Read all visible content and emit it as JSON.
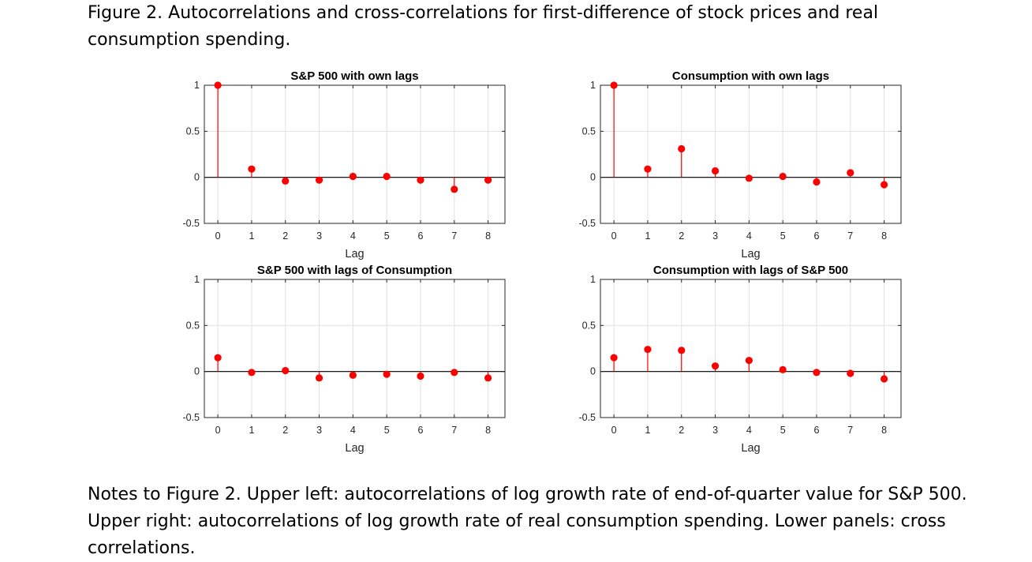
{
  "figure": {
    "title": "Figure 2. Autocorrelations and cross-correlations for first-difference of stock prices and real consumption spending.",
    "notes": "Notes to Figure 2. Upper left: autocorrelations of log growth rate of end-of-quarter value for S&P 500. Upper right: autocorrelations of log growth rate of real consumption spending.  Lower panels: cross correlations."
  },
  "colors": {
    "stem": "#ff0000",
    "axis": "#262626",
    "grid": "#e0e0e0",
    "zero_line": "#000000"
  },
  "chart_data": [
    {
      "type": "stem",
      "title": "S&P 500 with own lags",
      "xlabel": "Lag",
      "ylabel": "",
      "x": [
        0,
        1,
        2,
        3,
        4,
        5,
        6,
        7,
        8
      ],
      "values": [
        1.0,
        0.09,
        -0.04,
        -0.03,
        0.01,
        0.01,
        -0.03,
        -0.13,
        -0.03
      ],
      "xlim": [
        -0.4,
        8.5
      ],
      "ylim": [
        -0.5,
        1
      ],
      "xticks": [
        "0",
        "1",
        "2",
        "3",
        "4",
        "5",
        "6",
        "7",
        "8"
      ],
      "yticks": [
        "1",
        "0.5",
        "0",
        "-0.5"
      ],
      "grid": true
    },
    {
      "type": "stem",
      "title": "Consumption with own lags",
      "xlabel": "Lag",
      "ylabel": "",
      "x": [
        0,
        1,
        2,
        3,
        4,
        5,
        6,
        7,
        8
      ],
      "values": [
        1.0,
        0.09,
        0.31,
        0.07,
        -0.01,
        0.01,
        -0.05,
        0.05,
        -0.08
      ],
      "xlim": [
        -0.4,
        8.5
      ],
      "ylim": [
        -0.5,
        1
      ],
      "xticks": [
        "0",
        "1",
        "2",
        "3",
        "4",
        "5",
        "6",
        "7",
        "8"
      ],
      "yticks": [
        "1",
        "0.5",
        "0",
        "-0.5"
      ],
      "grid": true
    },
    {
      "type": "stem",
      "title": "S&P 500 with lags of Consumption",
      "xlabel": "",
      "ylabel": "",
      "x": [
        0,
        1,
        2,
        3,
        4,
        5,
        6,
        7,
        8
      ],
      "values": [
        0.15,
        -0.01,
        0.01,
        -0.07,
        -0.04,
        -0.03,
        -0.05,
        -0.01,
        -0.07
      ],
      "xlim": [
        -0.4,
        8.5
      ],
      "ylim": [
        -0.5,
        1
      ],
      "xticks": [
        "0",
        "1",
        "2",
        "3",
        "4",
        "5",
        "6",
        "7",
        "8"
      ],
      "yticks": [
        "1",
        "0.5",
        "0",
        "-0.5"
      ],
      "grid": true,
      "bottom_label": "Lag"
    },
    {
      "type": "stem",
      "title": "Consumption with lags of S&P 500",
      "xlabel": "",
      "ylabel": "",
      "x": [
        0,
        1,
        2,
        3,
        4,
        5,
        6,
        7,
        8
      ],
      "values": [
        0.15,
        0.24,
        0.23,
        0.06,
        0.12,
        0.02,
        -0.01,
        -0.02,
        -0.08
      ],
      "xlim": [
        -0.4,
        8.5
      ],
      "ylim": [
        -0.5,
        1
      ],
      "xticks": [
        "0",
        "1",
        "2",
        "3",
        "4",
        "5",
        "6",
        "7",
        "8"
      ],
      "yticks": [
        "1",
        "0.5",
        "0",
        "-0.5"
      ],
      "grid": true,
      "bottom_label": "Lag"
    }
  ]
}
